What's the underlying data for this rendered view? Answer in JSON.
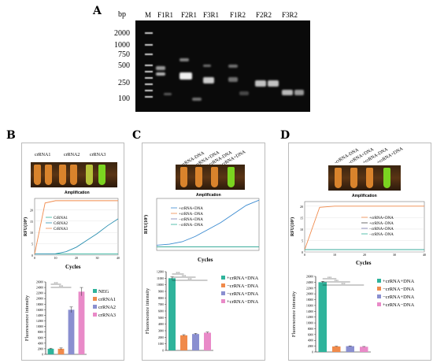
{
  "panelA": {
    "letter": "A",
    "bp_unit": "bp",
    "markers": [
      "2000",
      "1000",
      "750",
      "500",
      "250",
      "100"
    ],
    "lanes": [
      "M",
      "F1R1",
      "F2R1",
      "F3R1",
      "F1R2",
      "F2R2",
      "F3R2"
    ]
  },
  "panelB": {
    "letter": "B",
    "tube_labels": [
      "crRNA1",
      "crRNA2",
      "crRNA3"
    ],
    "amp_title": "Amplification",
    "ylabel": "RFU(10⁴)",
    "xlabel": "Cycles",
    "legend": [
      "CrRNA1",
      "CrRNA2",
      "CrRNA3"
    ],
    "bar_legend": [
      "NEG",
      "crRNA1",
      "crRNA2",
      "crRNA3"
    ],
    "bar_ylabel": "Fluorescence intensity",
    "sig": [
      "***",
      "***"
    ]
  },
  "panelC": {
    "letter": "C",
    "tube_labels": [
      "-crRNA-DNA",
      "-crRNA+DNA",
      "+crRNA-DNA",
      "+crRNA+DNA"
    ],
    "amp_title": "Amplification",
    "ylabel": "RFU(10³)",
    "xlabel": "Cycles",
    "legend": [
      "+crRNA+DNA",
      "+crRNA−DNA",
      "−crRNA+DNA",
      "−crRNA−DNA"
    ],
    "bar_legend": [
      "+crRNA+DNA",
      "−crRNA−DNA",
      "−crRNA+DNA",
      "+crRNA−DNA"
    ],
    "bar_ylabel": "Fluorescence intensity",
    "sig": [
      "***",
      "***",
      "***"
    ]
  },
  "panelD": {
    "letter": "D",
    "tube_labels": [
      "-crRNA-DNA",
      "-crRNA+DNA",
      "+crRNA-DNA",
      "+crRNA+DNA"
    ],
    "amp_title": "Amplification",
    "ylabel": "RFU(10³)",
    "xlabel": "Cycles",
    "legend": [
      "+crRNA+DNA",
      "+crRNA−DNA",
      "−crRNA+DNA",
      "−crRNA−DNA"
    ],
    "bar_legend": [
      "+crRNA+DNA",
      "−crRNA−DNA",
      "−crRNA+DNA",
      "+crRNA−DNA"
    ],
    "bar_ylabel": "Fluorescence intensity",
    "sig": [
      "***",
      "***",
      "***"
    ]
  },
  "colors": {
    "teal": "#2fb39b",
    "orange": "#f08a4b",
    "purple": "#8a8fd0",
    "pink": "#e98ac8",
    "green_tube": "#7bd420",
    "orange_tube": "#e08a2a"
  },
  "chart_data": [
    {
      "type": "line",
      "panel": "B-amplification",
      "x": [
        0,
        5,
        10,
        15,
        20,
        25,
        30,
        35,
        40
      ],
      "series": [
        {
          "name": "CrRNA1",
          "values": [
            0.5,
            0.5,
            0.5,
            0.5,
            0.5,
            0.5,
            0.5,
            0.5,
            0.5
          ]
        },
        {
          "name": "CrRNA2",
          "values": [
            0.5,
            0.5,
            0.6,
            1.5,
            3.5,
            6.5,
            9.5,
            13,
            16
          ]
        },
        {
          "name": "CrRNA3",
          "values": [
            0.5,
            23,
            24,
            24,
            24,
            24,
            24,
            24,
            24
          ]
        }
      ],
      "xlabel": "Cycles",
      "ylabel": "RFU(10⁴)",
      "xlim": [
        0,
        40
      ],
      "ylim": [
        0,
        25
      ],
      "yticks": [
        0,
        5,
        10,
        15,
        20
      ],
      "xticks": [
        0,
        10,
        20,
        30,
        40
      ]
    },
    {
      "type": "bar",
      "panel": "B-fluorescence",
      "categories": [
        "NEG",
        "crRNA1",
        "crRNA2",
        "crRNA3"
      ],
      "values": [
        2000,
        2000,
        16000,
        22500
      ],
      "errors": [
        200,
        300,
        1000,
        1500
      ],
      "ylabel": "Fluorescence intensity",
      "ylim": [
        0,
        26000
      ],
      "yticks": [
        0,
        2000,
        4000,
        6000,
        8000,
        10000,
        12000,
        14000,
        16000,
        18000,
        20000,
        22000,
        24000,
        26000
      ]
    },
    {
      "type": "line",
      "panel": "C-amplification",
      "x": [
        0,
        5,
        10,
        15,
        20,
        25,
        30,
        35,
        40
      ],
      "series": [
        {
          "name": "+crRNA+DNA",
          "values": [
            1.5,
            1.8,
            2.5,
            4,
            6,
            8,
            10.5,
            13,
            14.5
          ]
        },
        {
          "name": "+crRNA−DNA",
          "values": [
            1,
            1,
            1,
            1,
            1,
            1,
            1,
            1,
            1
          ]
        },
        {
          "name": "−crRNA+DNA",
          "values": [
            1,
            1,
            1,
            1,
            1,
            1,
            1,
            1,
            1
          ]
        },
        {
          "name": "−crRNA−DNA",
          "values": [
            1,
            1,
            1,
            1,
            1,
            1,
            1,
            1,
            1
          ]
        }
      ],
      "xlabel": "Cycles",
      "ylabel": "RFU(10³)",
      "xlim": [
        0,
        40
      ],
      "ylim": [
        0,
        15
      ]
    },
    {
      "type": "bar",
      "panel": "C-fluorescence",
      "categories": [
        "+crRNA+DNA",
        "−crRNA−DNA",
        "−crRNA+DNA",
        "+crRNA−DNA"
      ],
      "values": [
        11000,
        2300,
        2500,
        2700
      ],
      "errors": [
        200,
        100,
        100,
        100
      ],
      "ylabel": "Fluorescence intensity",
      "ylim": [
        0,
        12000
      ],
      "yticks": [
        0,
        1000,
        2000,
        3000,
        4000,
        5000,
        6000,
        7000,
        8000,
        9000,
        10000,
        11000,
        12000
      ]
    },
    {
      "type": "line",
      "panel": "D-amplification",
      "x": [
        0,
        5,
        10,
        15,
        20,
        25,
        30,
        35,
        40
      ],
      "series": [
        {
          "name": "+crRNA+DNA",
          "values": [
            1,
            19.5,
            20,
            20,
            20,
            20,
            20,
            20,
            20
          ]
        },
        {
          "name": "+crRNA−DNA",
          "values": [
            1,
            1,
            1,
            1,
            1,
            1,
            1,
            1,
            1
          ]
        },
        {
          "name": "−crRNA+DNA",
          "values": [
            1,
            1,
            1,
            1,
            1,
            1,
            1,
            1,
            1
          ]
        },
        {
          "name": "−crRNA−DNA",
          "values": [
            1,
            1,
            1,
            1,
            1,
            1,
            1,
            1,
            1
          ]
        }
      ],
      "xlabel": "Cycles",
      "ylabel": "RFU(10³)",
      "xlim": [
        0,
        40
      ],
      "ylim": [
        0,
        22
      ],
      "yticks": [
        0,
        5,
        10,
        15,
        20
      ],
      "xticks": [
        0,
        10,
        20,
        30,
        40
      ]
    },
    {
      "type": "bar",
      "panel": "D-fluorescence",
      "categories": [
        "+crRNA+DNA",
        "−crRNA−DNA",
        "−crRNA+DNA",
        "+crRNA−DNA"
      ],
      "values": [
        24000,
        1900,
        2000,
        1800
      ],
      "errors": [
        300,
        100,
        100,
        100
      ],
      "ylabel": "Fluorescence intensity",
      "ylim": [
        0,
        26000
      ],
      "yticks": [
        0,
        2000,
        4000,
        6000,
        8000,
        10000,
        12000,
        14000,
        16000,
        18000,
        20000,
        22000,
        24000,
        26000
      ]
    }
  ]
}
